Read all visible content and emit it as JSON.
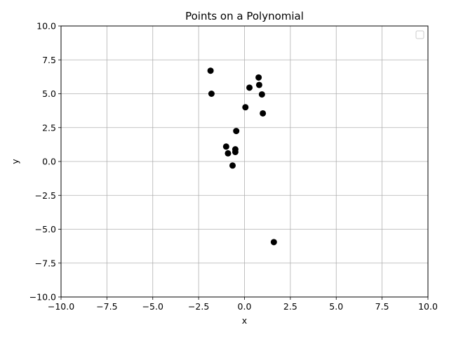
{
  "chart_data": {
    "type": "scatter",
    "title": "Points on a Polynomial",
    "xlabel": "x",
    "ylabel": "y",
    "xlim": [
      -10,
      10
    ],
    "ylim": [
      -10,
      10
    ],
    "xticks": [
      -10,
      -7.5,
      -5,
      -2.5,
      0,
      2.5,
      5,
      7.5,
      10
    ],
    "yticks": [
      -10,
      -7.5,
      -5,
      -2.5,
      0,
      2.5,
      5,
      7.5,
      10
    ],
    "xtick_labels": [
      "−10.0",
      "−7.5",
      "−5.0",
      "−2.5",
      "0.0",
      "2.5",
      "5.0",
      "7.5",
      "10.0"
    ],
    "ytick_labels": [
      "−10.0",
      "−7.5",
      "−5.0",
      "−2.5",
      "0.0",
      "2.5",
      "5.0",
      "7.5",
      "10.0"
    ],
    "grid": true,
    "legend": "upper right (empty)",
    "point_color": "#000000",
    "series": [
      {
        "x": [
          -1.85,
          -1.8,
          0.77,
          0.27,
          0.8,
          0.95,
          0.05,
          1.0,
          -0.45,
          -1.0,
          -0.5,
          -0.9,
          -0.5,
          -0.65,
          1.6
        ],
        "y": [
          6.7,
          5.0,
          6.2,
          5.45,
          5.65,
          4.95,
          4.0,
          3.55,
          2.25,
          1.1,
          0.9,
          0.6,
          0.7,
          -0.3,
          -5.95
        ]
      }
    ]
  }
}
